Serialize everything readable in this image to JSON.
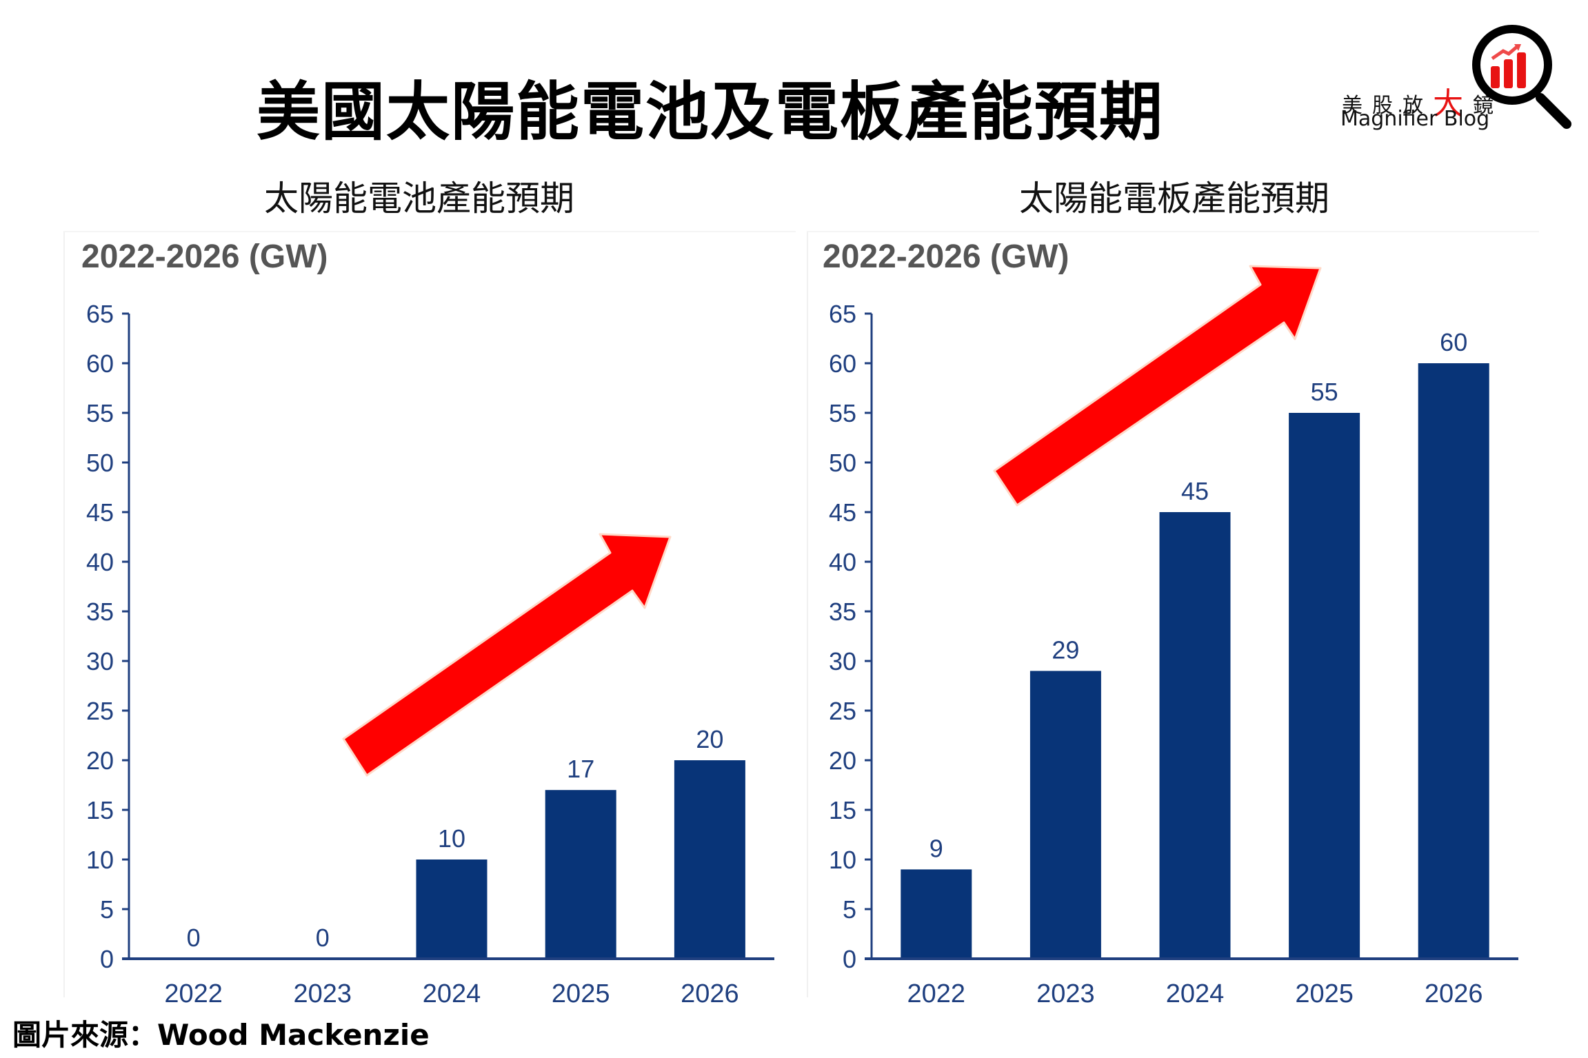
{
  "header": {
    "title": "美國太陽能電池及電板產能預期"
  },
  "logo": {
    "cn_prefix": "美股放",
    "cn_big": "大",
    "cn_suffix": "鏡",
    "en": "Magnifier Blog",
    "icon": "magnifier-chart-icon",
    "accent_color": "#e81313"
  },
  "source": "圖片來源：Wood Mackenzie",
  "colors": {
    "bar": "#083478",
    "axis": "#1f3f7f",
    "arrow": "#ff0000"
  },
  "chart_data": [
    {
      "type": "bar",
      "title": "太陽能電池產能預期",
      "subtitle": "2022-2026 (GW)",
      "xlabel": "",
      "ylabel": "GW",
      "categories": [
        "2022",
        "2023",
        "2024",
        "2025",
        "2026"
      ],
      "values": [
        0,
        0,
        10,
        17,
        20
      ],
      "ylim": [
        0,
        65
      ],
      "yticks": [
        0,
        5,
        10,
        15,
        20,
        25,
        30,
        35,
        40,
        45,
        50,
        55,
        60,
        65
      ],
      "grid": false,
      "legend": "none",
      "annotation": "red upward trend arrow"
    },
    {
      "type": "bar",
      "title": "太陽能電板產能預期",
      "subtitle": "2022-2026 (GW)",
      "xlabel": "",
      "ylabel": "GW",
      "categories": [
        "2022",
        "2023",
        "2024",
        "2025",
        "2026"
      ],
      "values": [
        9,
        29,
        45,
        55,
        60
      ],
      "ylim": [
        0,
        65
      ],
      "yticks": [
        0,
        5,
        10,
        15,
        20,
        25,
        30,
        35,
        40,
        45,
        50,
        55,
        60,
        65
      ],
      "grid": false,
      "legend": "none",
      "annotation": "red upward trend arrow"
    }
  ]
}
